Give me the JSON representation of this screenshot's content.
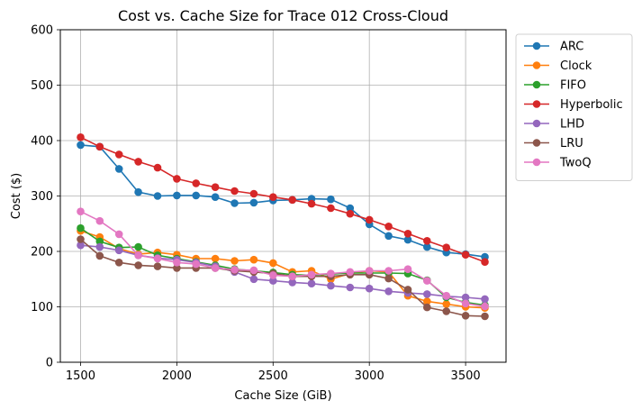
{
  "chart_data": {
    "type": "line",
    "title": "Cost vs. Cache Size for Trace 012 Cross-Cloud",
    "xlabel": "Cache Size (GiB)",
    "ylabel": "Cost ($)",
    "xlim": [
      1395,
      3710
    ],
    "ylim": [
      0,
      600
    ],
    "xticks": [
      1500,
      2000,
      2500,
      3000,
      3500
    ],
    "yticks": [
      0,
      100,
      200,
      300,
      400,
      500,
      600
    ],
    "grid": true,
    "legend_position": "outside-top-right",
    "x": [
      1500,
      1600,
      1700,
      1800,
      1900,
      2000,
      2100,
      2200,
      2300,
      2400,
      2500,
      2600,
      2700,
      2800,
      2900,
      3000,
      3100,
      3200,
      3300,
      3400,
      3500,
      3600
    ],
    "series": [
      {
        "name": "ARC",
        "color": "#1f77b4",
        "values": [
          392,
          389,
          349,
          307,
          300,
          301,
          301,
          298,
          287,
          288,
          292,
          293,
          295,
          294,
          278,
          249,
          228,
          221,
          208,
          198,
          195,
          190
        ]
      },
      {
        "name": "Clock",
        "color": "#ff7f0e",
        "values": [
          237,
          226,
          205,
          195,
          198,
          194,
          187,
          187,
          183,
          185,
          179,
          163,
          165,
          150,
          160,
          165,
          163,
          120,
          110,
          105,
          100,
          98
        ]
      },
      {
        "name": "FIFO",
        "color": "#2ca02c",
        "values": [
          242,
          218,
          207,
          208,
          193,
          187,
          181,
          175,
          168,
          165,
          162,
          158,
          157,
          159,
          161,
          161,
          161,
          160,
          148,
          117,
          108,
          103
        ]
      },
      {
        "name": "Hyperbolic",
        "color": "#d62728",
        "values": [
          406,
          389,
          375,
          362,
          351,
          331,
          323,
          316,
          309,
          304,
          298,
          293,
          286,
          278,
          268,
          257,
          245,
          232,
          219,
          207,
          194,
          181
        ]
      },
      {
        "name": "LHD",
        "color": "#9467bd",
        "values": [
          211,
          208,
          202,
          193,
          188,
          185,
          180,
          173,
          163,
          150,
          147,
          144,
          142,
          138,
          135,
          133,
          128,
          125,
          123,
          119,
          117,
          114
        ]
      },
      {
        "name": "LRU",
        "color": "#8c564b",
        "values": [
          222,
          192,
          180,
          175,
          173,
          170,
          170,
          170,
          165,
          163,
          160,
          155,
          155,
          155,
          158,
          158,
          151,
          131,
          99,
          92,
          84,
          83
        ]
      },
      {
        "name": "TwoQ",
        "color": "#e377c2",
        "values": [
          272,
          255,
          231,
          193,
          187,
          180,
          177,
          170,
          167,
          166,
          157,
          155,
          158,
          160,
          163,
          165,
          165,
          168,
          147,
          120,
          106,
          101
        ]
      }
    ]
  }
}
